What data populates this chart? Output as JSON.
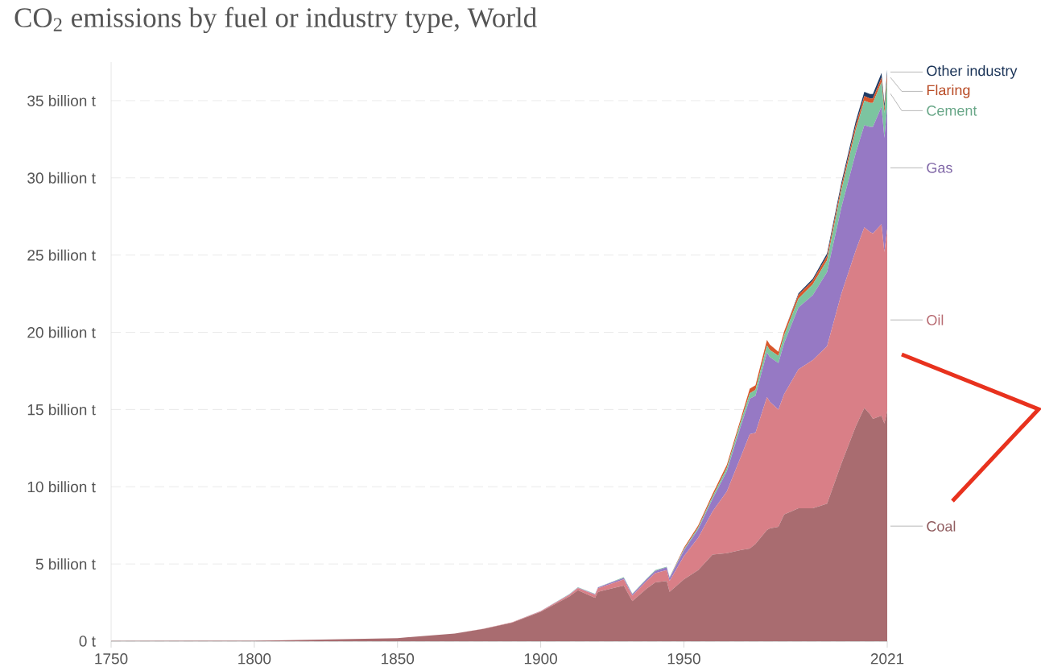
{
  "chart_data": {
    "type": "area",
    "title": "CO$_{2}$ emissions by fuel or industry type, World",
    "stacked": true,
    "grid": "y",
    "legend": "right",
    "x": [
      1750,
      1800,
      1850,
      1870,
      1880,
      1890,
      1900,
      1910,
      1913,
      1919,
      1920,
      1929,
      1932,
      1937,
      1940,
      1944,
      1945,
      1950,
      1955,
      1960,
      1965,
      1970,
      1973,
      1975,
      1979,
      1980,
      1983,
      1985,
      1990,
      1995,
      2000,
      2005,
      2010,
      2013,
      2015,
      2016,
      2019,
      2020,
      2021
    ],
    "xlim": [
      1750,
      2021
    ],
    "xticks": [
      1750,
      1800,
      1850,
      1900,
      1950,
      2021
    ],
    "ylim": [
      0,
      37.5
    ],
    "yticks": [
      {
        "value": 0,
        "label": "0 t"
      },
      {
        "value": 5,
        "label": "5 billion t"
      },
      {
        "value": 10,
        "label": "10 billion t"
      },
      {
        "value": 15,
        "label": "15 billion t"
      },
      {
        "value": 20,
        "label": "20 billion t"
      },
      {
        "value": 25,
        "label": "25 billion t"
      },
      {
        "value": 30,
        "label": "30 billion t"
      },
      {
        "value": 35,
        "label": "35 billion t"
      }
    ],
    "series": [
      {
        "name": "Coal",
        "color": "#a96c70",
        "values": [
          0.01,
          0.03,
          0.2,
          0.5,
          0.8,
          1.2,
          1.9,
          2.9,
          3.3,
          2.8,
          3.2,
          3.6,
          2.6,
          3.4,
          3.8,
          3.9,
          3.2,
          4.0,
          4.6,
          5.6,
          5.7,
          5.9,
          6.0,
          6.3,
          7.2,
          7.3,
          7.4,
          8.2,
          8.6,
          8.6,
          8.9,
          11.5,
          13.9,
          15.1,
          14.7,
          14.4,
          14.6,
          14.1,
          14.9
        ]
      },
      {
        "name": "Oil",
        "color": "#d97f87",
        "values": [
          0,
          0,
          0,
          0,
          0.01,
          0.02,
          0.04,
          0.1,
          0.14,
          0.2,
          0.23,
          0.4,
          0.35,
          0.5,
          0.6,
          0.7,
          0.7,
          1.5,
          2.1,
          2.8,
          4.0,
          6.1,
          7.4,
          7.2,
          8.6,
          8.2,
          7.6,
          7.8,
          9.0,
          9.6,
          10.2,
          11.0,
          11.4,
          11.7,
          11.8,
          12.0,
          12.4,
          11.1,
          11.8
        ]
      },
      {
        "name": "Gas",
        "color": "#9679c4",
        "values": [
          0,
          0,
          0,
          0,
          0,
          0.01,
          0.01,
          0.03,
          0.03,
          0.04,
          0.05,
          0.1,
          0.09,
          0.12,
          0.15,
          0.18,
          0.2,
          0.37,
          0.55,
          0.8,
          1.3,
          2.0,
          2.3,
          2.4,
          2.9,
          2.9,
          3.0,
          3.3,
          4.0,
          4.2,
          4.8,
          5.6,
          6.3,
          6.6,
          6.8,
          6.9,
          7.6,
          7.4,
          7.9
        ]
      },
      {
        "name": "Cement",
        "color": "#7cc4a0",
        "values": [
          0,
          0,
          0,
          0,
          0,
          0,
          0.01,
          0.02,
          0.02,
          0.02,
          0.02,
          0.04,
          0.03,
          0.04,
          0.05,
          0.04,
          0.04,
          0.08,
          0.12,
          0.16,
          0.22,
          0.3,
          0.35,
          0.37,
          0.45,
          0.45,
          0.48,
          0.5,
          0.58,
          0.7,
          0.77,
          1.1,
          1.5,
          1.6,
          1.55,
          1.55,
          1.6,
          1.6,
          1.7
        ]
      },
      {
        "name": "Flaring",
        "color": "#d9572b",
        "values": [
          0,
          0,
          0,
          0,
          0,
          0,
          0,
          0,
          0,
          0,
          0,
          0,
          0,
          0,
          0,
          0,
          0,
          0.1,
          0.13,
          0.17,
          0.2,
          0.2,
          0.3,
          0.3,
          0.35,
          0.35,
          0.26,
          0.25,
          0.24,
          0.25,
          0.27,
          0.28,
          0.3,
          0.29,
          0.29,
          0.29,
          0.29,
          0.3,
          0.4
        ]
      },
      {
        "name": "Other industry",
        "color": "#1f3c66",
        "values": [
          0,
          0,
          0,
          0,
          0,
          0,
          0,
          0,
          0,
          0,
          0,
          0,
          0,
          0,
          0,
          0,
          0,
          0,
          0,
          0,
          0,
          0,
          0,
          0,
          0,
          0,
          0,
          0,
          0.1,
          0.12,
          0.17,
          0.22,
          0.26,
          0.28,
          0.28,
          0.28,
          0.3,
          0.29,
          0.3
        ]
      }
    ]
  }
}
